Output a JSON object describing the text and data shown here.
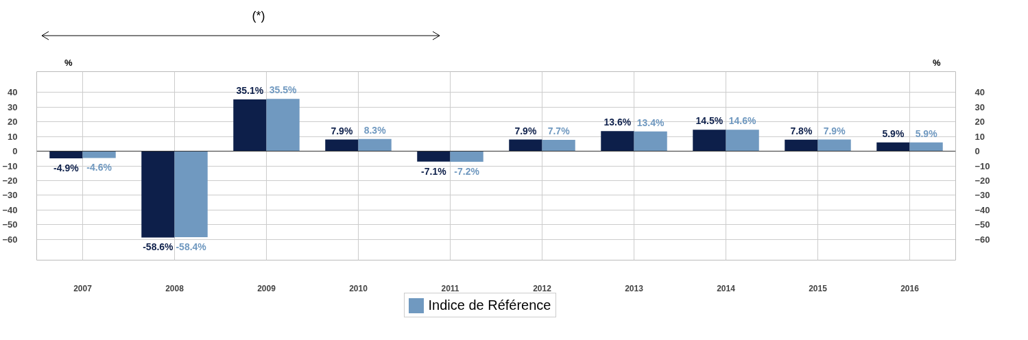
{
  "chart_data": {
    "type": "bar",
    "categories": [
      "2007",
      "2008",
      "2009",
      "2010",
      "2011",
      "2012",
      "2013",
      "2014",
      "2015",
      "2016"
    ],
    "series": [
      {
        "color": "#0d1f4a",
        "values": [
          -4.9,
          -58.6,
          35.1,
          7.9,
          -7.1,
          7.9,
          13.6,
          14.5,
          7.8,
          5.9
        ],
        "value_labels": [
          "-4.9%",
          "-58.6%",
          "35.1%",
          "7.9%",
          "-7.1%",
          "7.9%",
          "13.6%",
          "14.5%",
          "7.8%",
          "5.9%"
        ]
      },
      {
        "name": "Indice de Référence",
        "color": "#7099c0",
        "values": [
          -4.6,
          -58.4,
          35.5,
          8.3,
          -7.2,
          7.7,
          13.4,
          14.6,
          7.9,
          5.9
        ],
        "value_labels": [
          "-4.6%",
          "-58.4%",
          "35.5%",
          "8.3%",
          "-7.2%",
          "7.7%",
          "13.4%",
          "14.6%",
          "7.9%",
          "5.9%"
        ]
      }
    ],
    "ylabel": "%",
    "y2label": "%",
    "ylim": [
      -74,
      54
    ],
    "yticks": [
      -60,
      -50,
      -40,
      -30,
      -20,
      -10,
      0,
      10,
      20,
      30,
      40
    ],
    "y2lim": [
      -74,
      54
    ],
    "y2ticks": [
      -60,
      -50,
      -40,
      -30,
      -20,
      -10,
      0,
      10,
      20,
      30,
      40
    ],
    "annotations": [
      "(*)"
    ],
    "grid": true,
    "legend": "bottom"
  }
}
